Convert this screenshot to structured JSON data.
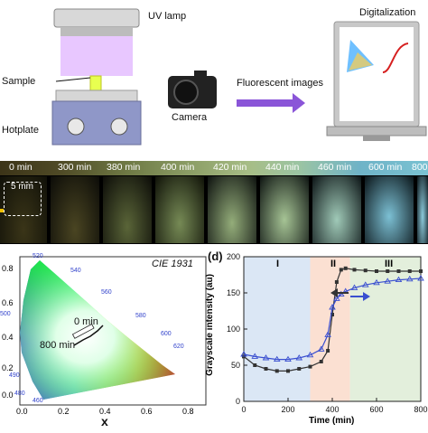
{
  "panel_a": {
    "uv_lamp_label": "UV lamp",
    "sample_label": "Sample",
    "hotplate_label": "Hotplate",
    "camera_label": "Camera",
    "fluorescent_label": "Fluorescent images",
    "digitalization_label": "Digitalization"
  },
  "panel_b": {
    "times": [
      "0 min",
      "300 min",
      "380 min",
      "400 min",
      "420 min",
      "440 min",
      "460 min",
      "600 min",
      "800"
    ],
    "scale_bar": "5 mm"
  },
  "panel_c": {
    "title": "CIE 1931",
    "xlabel": "x",
    "y_ticks": [
      "0.8",
      "0.6",
      "0.4",
      "0.2",
      "0.0"
    ],
    "x_ticks": [
      "0.0",
      "0.2",
      "0.4",
      "0.6",
      "0.8"
    ],
    "wavelengths": [
      "520",
      "540",
      "500",
      "560",
      "580",
      "600",
      "620",
      "490",
      "480",
      "460"
    ],
    "start_label": "0 min",
    "end_label": "800 min"
  },
  "panel_d": {
    "panel_label": "(d)",
    "ylabel": "Grayscale intensity (au)",
    "xlabel": "Time (min)",
    "region_labels": [
      "I",
      "II",
      "III"
    ]
  },
  "colors": {
    "region1": "#dbe7f5",
    "region2": "#fbe0d2",
    "region3": "#e3efdc",
    "series_black": "#333333",
    "series_blue": "#3a4fd0",
    "arrow_purple": "#8a55d8"
  },
  "chart_data": {
    "type": "line",
    "x": [
      0,
      50,
      100,
      150,
      200,
      250,
      300,
      350,
      380,
      400,
      420,
      440,
      460,
      500,
      550,
      600,
      650,
      700,
      750,
      800
    ],
    "series": [
      {
        "values": [
          62,
          50,
          45,
          42,
          42,
          45,
          48,
          55,
          70,
          120,
          165,
          182,
          184,
          182,
          181,
          180,
          180,
          180,
          180,
          180
        ]
      },
      {
        "values": [
          65,
          62,
          60,
          58,
          58,
          60,
          64,
          72,
          92,
          130,
          142,
          148,
          152,
          157,
          161,
          164,
          166,
          168,
          169,
          170
        ]
      }
    ],
    "xlim": [
      0,
      800
    ],
    "ylim": [
      0,
      200
    ],
    "x_ticks": [
      0,
      200,
      400,
      600,
      800
    ],
    "y_ticks": [
      0,
      50,
      100,
      150,
      200
    ],
    "regions": [
      [
        0,
        300
      ],
      [
        300,
        480
      ],
      [
        480,
        800
      ]
    ]
  }
}
